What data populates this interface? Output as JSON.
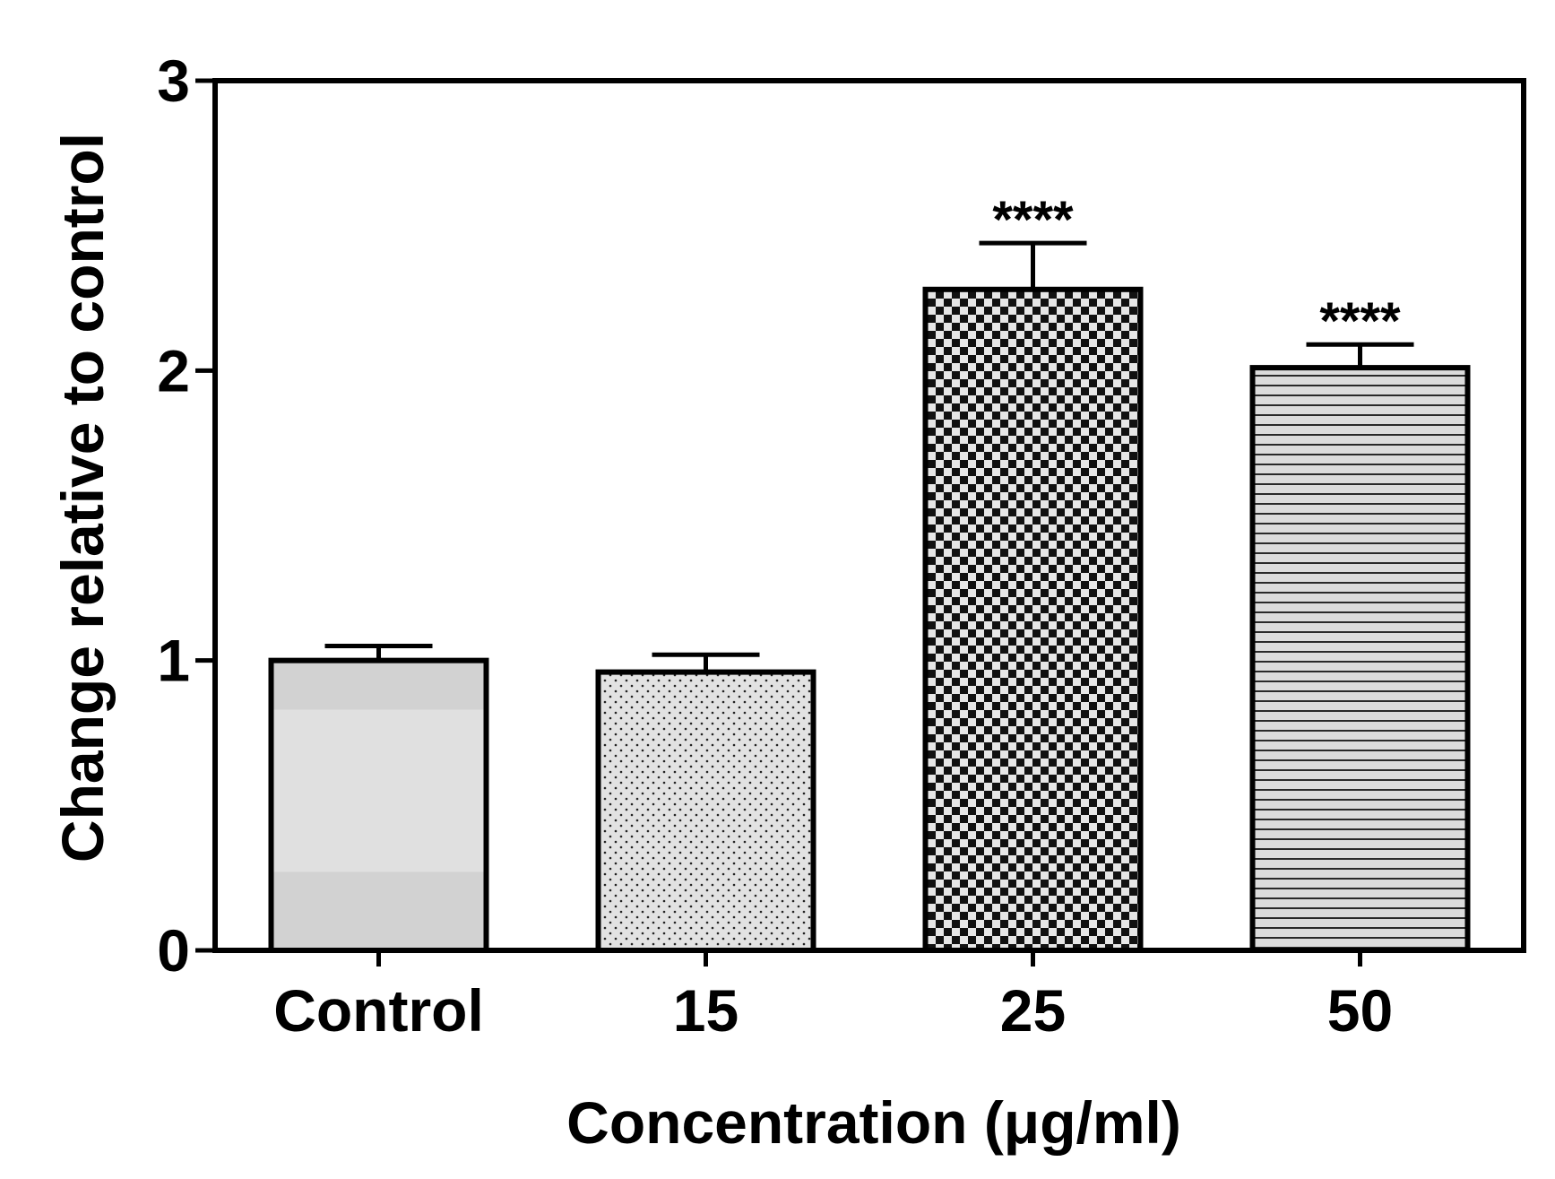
{
  "chart_data": {
    "type": "bar",
    "title": "",
    "xlabel": "Concentration (μg/ml)",
    "ylabel": "Change relative to control",
    "categories": [
      "Control",
      "15",
      "25",
      "50"
    ],
    "values": [
      1.0,
      0.96,
      2.28,
      2.01
    ],
    "errors": [
      0.05,
      0.06,
      0.16,
      0.08
    ],
    "significance": [
      "",
      "",
      "****",
      "****"
    ],
    "patterns": [
      "solid",
      "dots",
      "checker",
      "hlines"
    ],
    "ylim": [
      0,
      3
    ],
    "yticks": [
      "0",
      "1",
      "2",
      "3"
    ],
    "grid": false,
    "colors": {
      "bar_fill": "#d9d9d9",
      "outline": "#000000",
      "pattern_dark": "#111111"
    }
  }
}
